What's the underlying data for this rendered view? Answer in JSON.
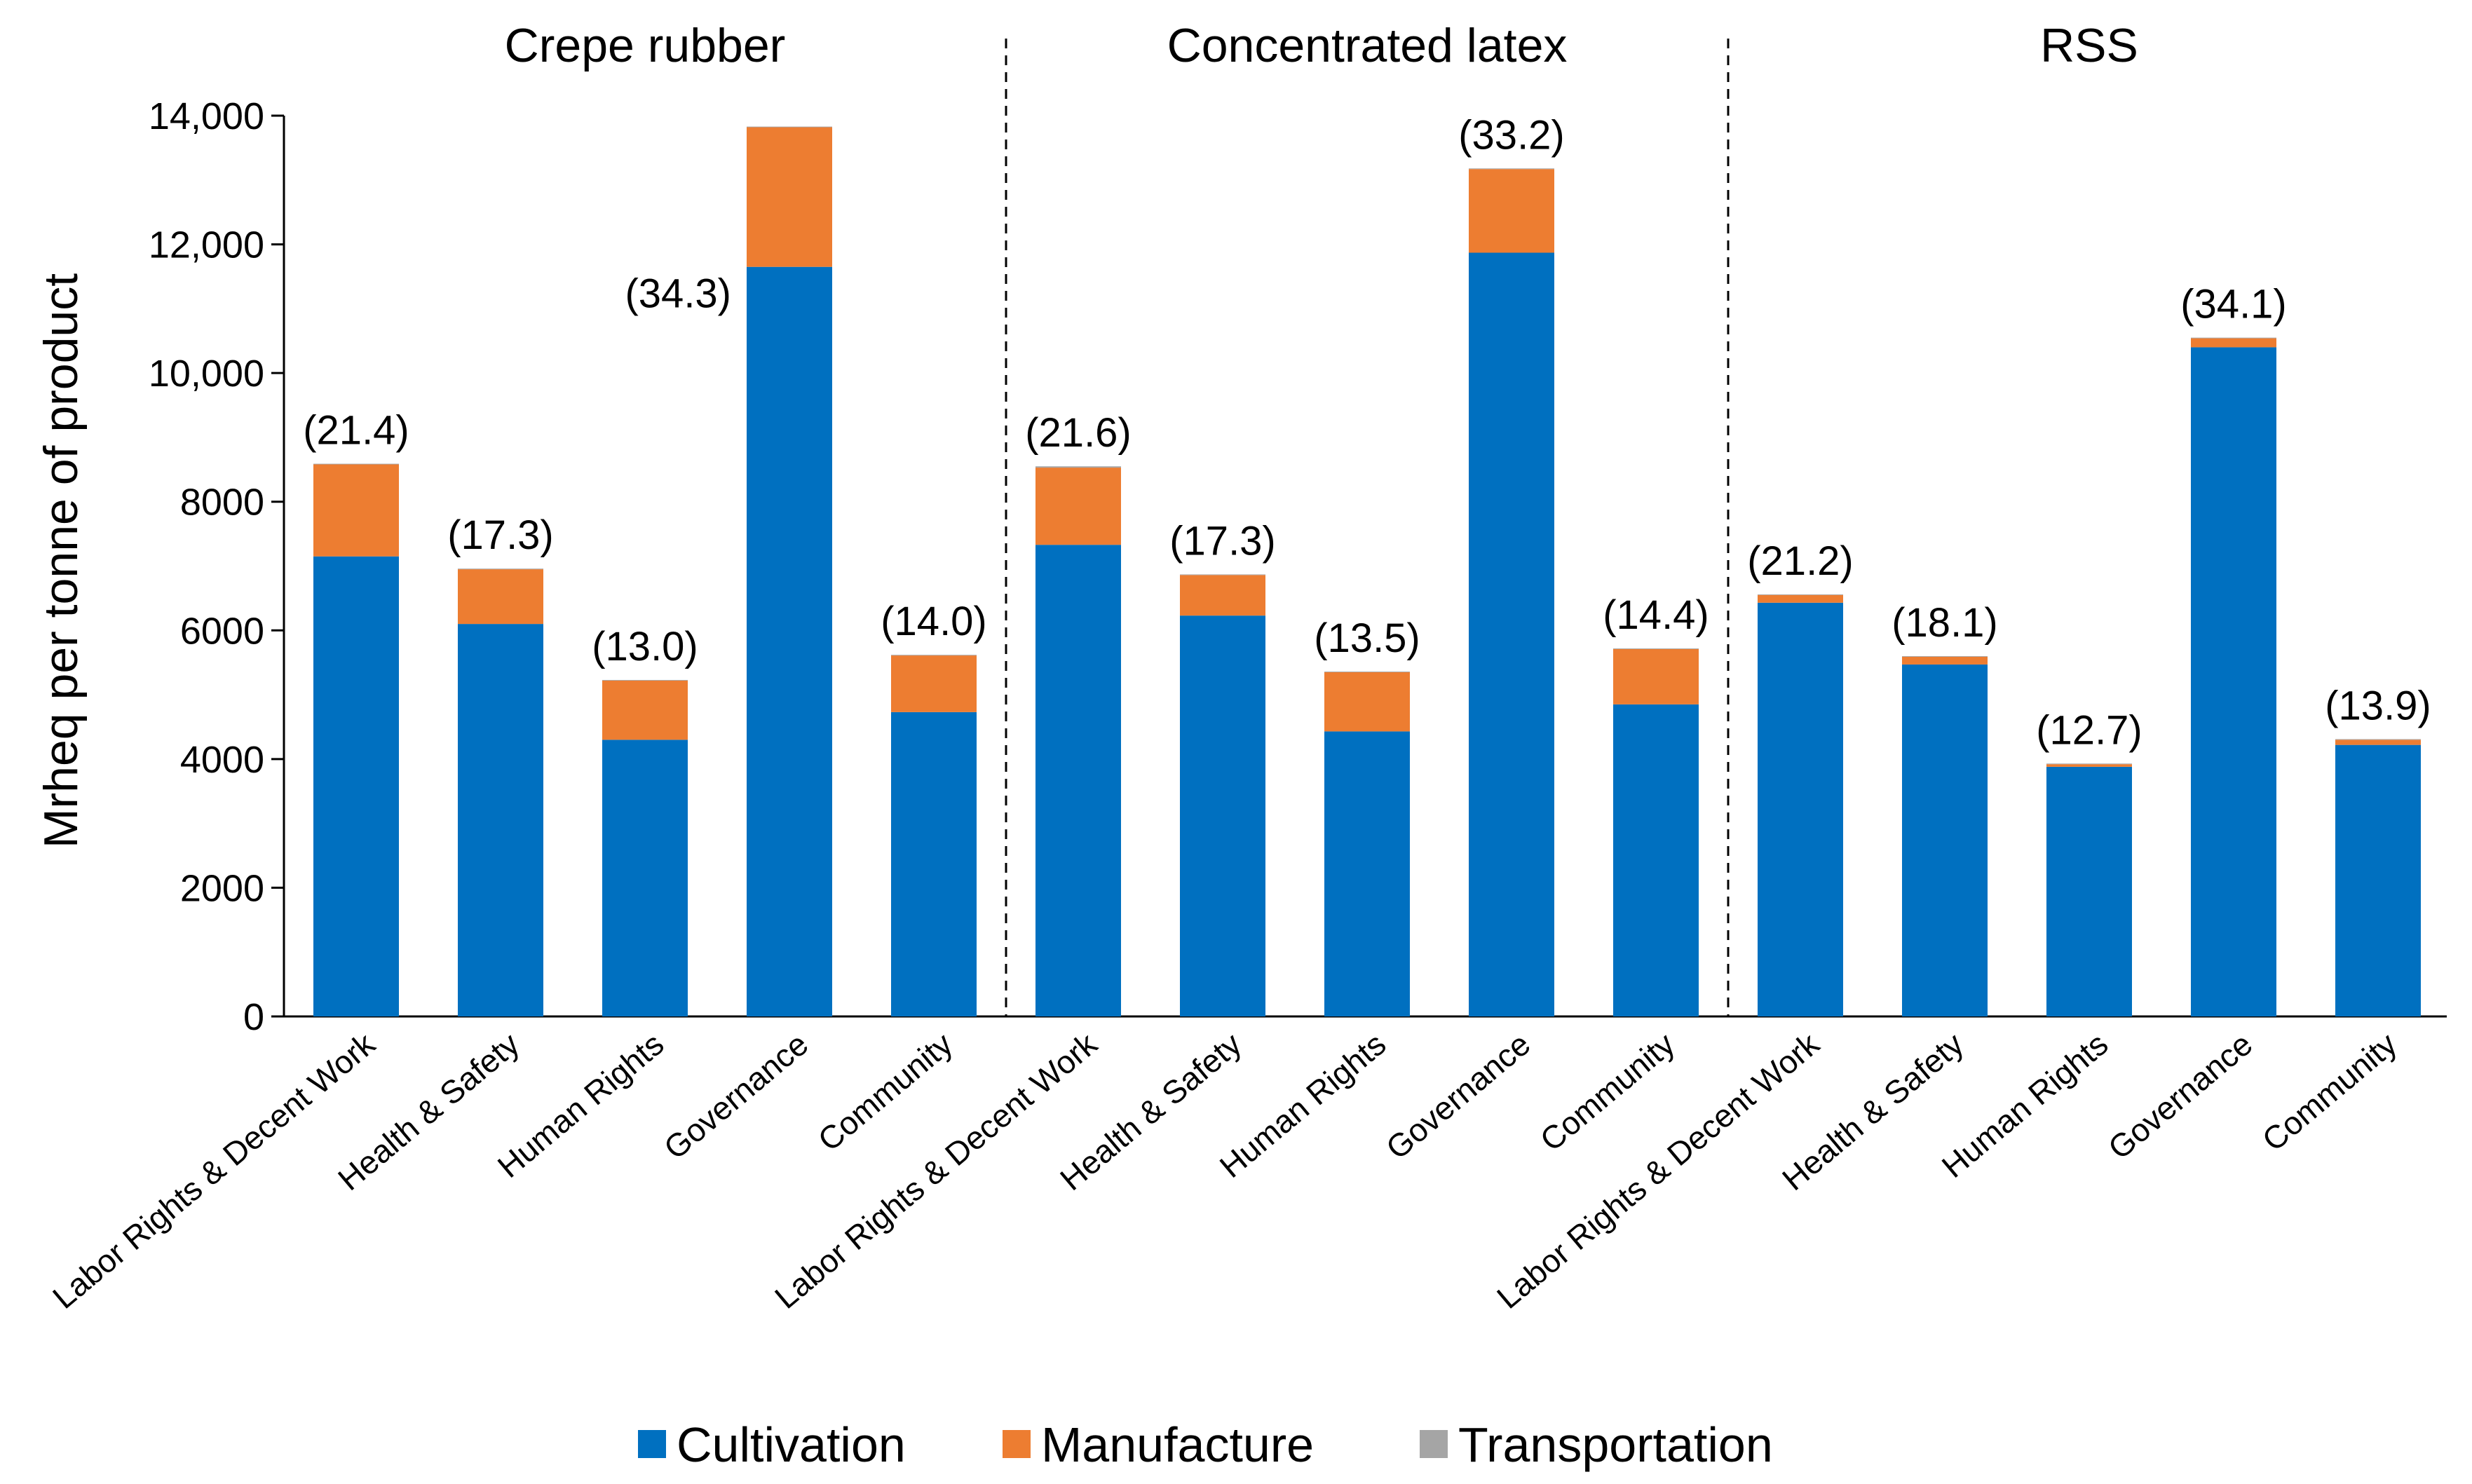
{
  "chart_data": {
    "type": "bar",
    "stacked": true,
    "title": "",
    "ylabel": "Mrheq per tonne of product",
    "xlabel": "",
    "ylim": [
      0,
      14000
    ],
    "y_ticks": [
      0,
      2000,
      4000,
      6000,
      8000,
      10000,
      12000,
      14000
    ],
    "y_tick_labels": [
      "0",
      "2000",
      "4000",
      "6000",
      "8000",
      "10,000",
      "12,000",
      "14,000"
    ],
    "grid": false,
    "legend": {
      "position": "bottom",
      "entries": [
        "Cultivation",
        "Manufacture",
        "Transportation"
      ]
    },
    "colors": {
      "Cultivation": "#0070C0",
      "Manufacture": "#ED7D31",
      "Transportation": "#A5A5A5"
    },
    "groups": [
      {
        "name": "Crepe rubber",
        "categories": [
          "Labor Rights & Decent Work",
          "Health & Safety",
          "Human Rights",
          "Governance",
          "Community"
        ],
        "series": [
          {
            "name": "Cultivation",
            "values": [
              7150,
              6100,
              4300,
              11650,
              4730
            ]
          },
          {
            "name": "Manufacture",
            "values": [
              1430,
              850,
              920,
              2170,
              880
            ]
          },
          {
            "name": "Transportation",
            "values": [
              10,
              10,
              10,
              10,
              10
            ]
          }
        ],
        "data_labels": [
          "(21.4)",
          "(17.3)",
          "(13.0)",
          "(34.3)",
          "(14.0)"
        ]
      },
      {
        "name": "Concentrated latex",
        "categories": [
          "Labor Rights & Decent Work",
          "Health & Safety",
          "Human Rights",
          "Governance",
          "Community"
        ],
        "series": [
          {
            "name": "Cultivation",
            "values": [
              7330,
              6230,
              4430,
              11870,
              4850
            ]
          },
          {
            "name": "Manufacture",
            "values": [
              1200,
              630,
              920,
              1300,
              860
            ]
          },
          {
            "name": "Transportation",
            "values": [
              20,
              10,
              10,
              10,
              10
            ]
          }
        ],
        "data_labels": [
          "(21.6)",
          "(17.3)",
          "(13.5)",
          "(33.2)",
          "(14.4)"
        ]
      },
      {
        "name": "RSS",
        "categories": [
          "Labor Rights & Decent Work",
          "Health & Safety",
          "Human Rights",
          "Governance",
          "Community"
        ],
        "series": [
          {
            "name": "Cultivation",
            "values": [
              6430,
              5470,
              3880,
              10400,
              4220
            ]
          },
          {
            "name": "Manufacture",
            "values": [
              120,
              120,
              40,
              140,
              80
            ]
          },
          {
            "name": "Transportation",
            "values": [
              10,
              10,
              10,
              10,
              10
            ]
          }
        ],
        "data_labels": [
          "(21.2)",
          "(18.1)",
          "(12.7)",
          "(34.1)",
          "(13.9)"
        ]
      }
    ]
  }
}
